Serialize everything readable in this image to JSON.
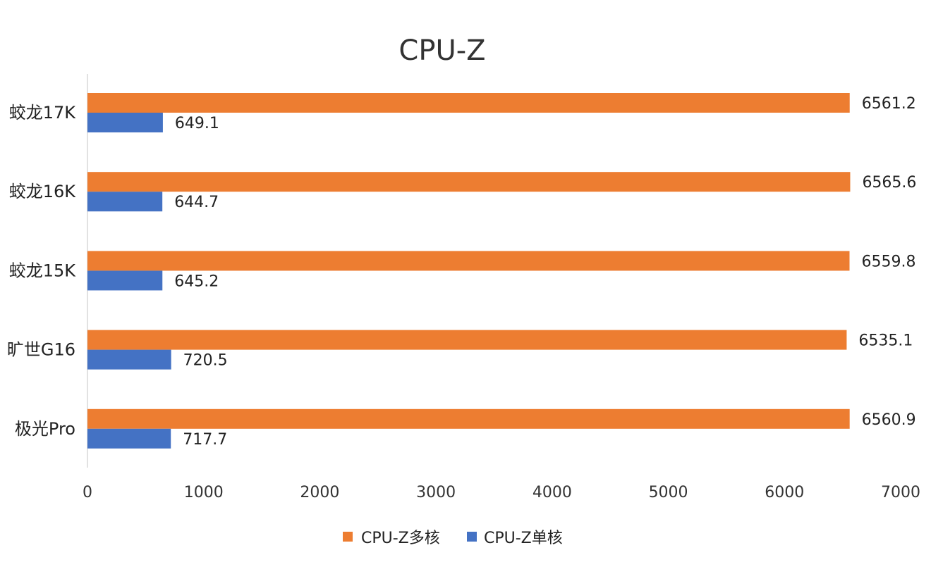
{
  "chart_data": {
    "type": "bar",
    "orientation": "horizontal",
    "title": "CPU-Z",
    "categories": [
      "蛟龙17K",
      "蛟龙16K",
      "蛟龙15K",
      "旷世G16",
      "极光Pro"
    ],
    "series": [
      {
        "name": "CPU-Z多核",
        "color": "#ED7D31",
        "values": [
          6561.2,
          6565.6,
          6559.8,
          6535.1,
          6560.9
        ],
        "labels": [
          "6561.2",
          "6565.6",
          "6559.8",
          "6535.1",
          "6560.9"
        ]
      },
      {
        "name": "CPU-Z单核",
        "color": "#4472C4",
        "values": [
          649.1,
          644.7,
          645.2,
          720.5,
          717.7
        ],
        "labels": [
          "649.1",
          "644.7",
          "645.2",
          "720.5",
          "717.7"
        ]
      }
    ],
    "xlim": [
      0,
      7000
    ],
    "xticks": [
      "0",
      "1000",
      "2000",
      "3000",
      "4000",
      "5000",
      "6000",
      "7000"
    ],
    "xlabel": "",
    "ylabel": "",
    "grid": false,
    "legend": "bottom-center"
  }
}
